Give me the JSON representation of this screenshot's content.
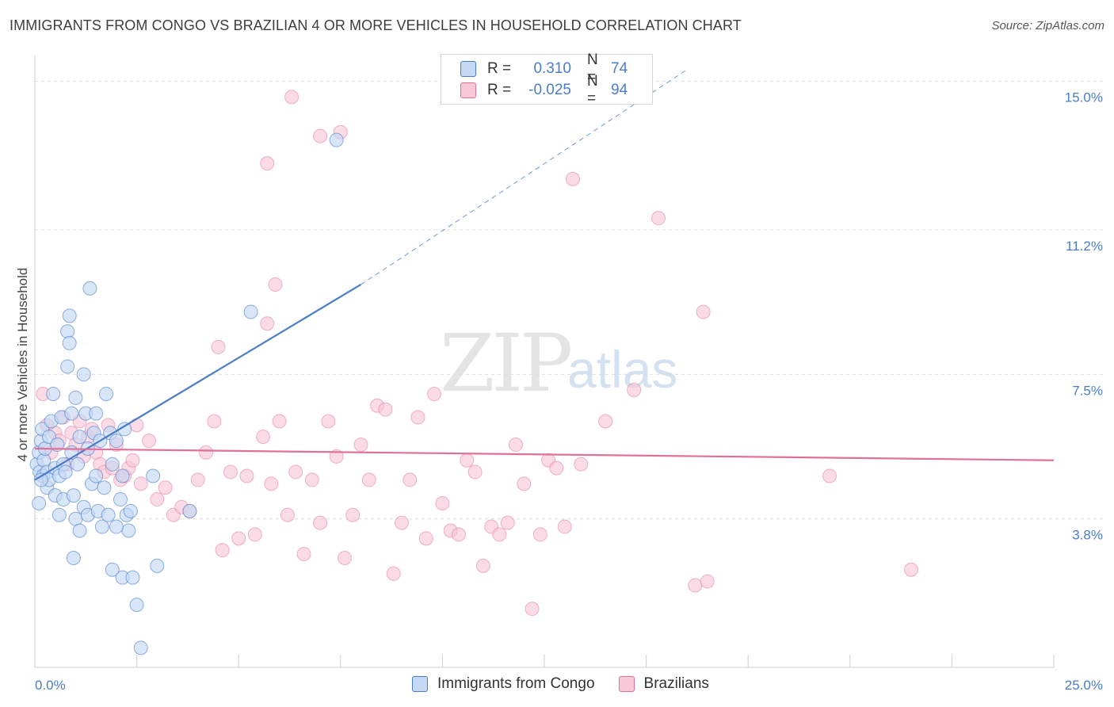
{
  "title": "IMMIGRANTS FROM CONGO VS BRAZILIAN 4 OR MORE VEHICLES IN HOUSEHOLD CORRELATION CHART",
  "source": "Source: ZipAtlas.com",
  "watermark": {
    "zip": "ZIP",
    "atlas": "atlas"
  },
  "colors": {
    "blue": "#4a7dc9",
    "blue_fill": "#c5d9f5",
    "pink": "#e07099",
    "pink_fill": "#f8c8d8"
  },
  "legend": {
    "rows": [
      {
        "r_label": "R =",
        "r_value": "0.310",
        "n_label": "N =",
        "n_value": "74"
      },
      {
        "r_label": "R =",
        "r_value": "-0.025",
        "n_label": "N =",
        "n_value": "94"
      }
    ]
  },
  "bottom_legend": [
    "Immigrants from Congo",
    "Brazilians"
  ],
  "chart_data": {
    "type": "scatter",
    "title": "IMMIGRANTS FROM CONGO VS BRAZILIAN 4 OR MORE VEHICLES IN HOUSEHOLD CORRELATION CHART",
    "xlabel": "",
    "ylabel": "4 or more Vehicles in Household",
    "xlim": [
      0,
      25
    ],
    "ylim": [
      0,
      15.5
    ],
    "x_tick_labels": [
      "0.0%",
      "25.0%"
    ],
    "y_ticks": [
      3.8,
      7.5,
      11.2,
      15.0
    ],
    "y_tick_labels": [
      "3.8%",
      "7.5%",
      "11.2%",
      "15.0%"
    ],
    "grid": true,
    "series": [
      {
        "name": "Immigrants from Congo",
        "r": 0.31,
        "n": 74,
        "trend": {
          "x": [
            0,
            8
          ],
          "y": [
            4.8,
            9.8
          ],
          "dashed_to": [
            16,
            15.3
          ]
        },
        "points": [
          [
            0.05,
            5.2
          ],
          [
            0.1,
            5.5
          ],
          [
            0.12,
            5.0
          ],
          [
            0.15,
            5.8
          ],
          [
            0.18,
            6.1
          ],
          [
            0.2,
            4.9
          ],
          [
            0.22,
            5.3
          ],
          [
            0.25,
            5.6
          ],
          [
            0.3,
            4.6
          ],
          [
            0.3,
            5.0
          ],
          [
            0.35,
            4.8
          ],
          [
            0.35,
            5.9
          ],
          [
            0.4,
            6.3
          ],
          [
            0.45,
            7.0
          ],
          [
            0.5,
            5.1
          ],
          [
            0.5,
            4.4
          ],
          [
            0.55,
            5.7
          ],
          [
            0.6,
            3.9
          ],
          [
            0.6,
            4.9
          ],
          [
            0.65,
            6.4
          ],
          [
            0.7,
            5.2
          ],
          [
            0.7,
            4.3
          ],
          [
            0.75,
            5.0
          ],
          [
            0.8,
            7.7
          ],
          [
            0.8,
            8.6
          ],
          [
            0.85,
            8.3
          ],
          [
            0.85,
            9.0
          ],
          [
            0.9,
            6.5
          ],
          [
            0.9,
            5.5
          ],
          [
            0.95,
            4.4
          ],
          [
            1.0,
            6.9
          ],
          [
            1.0,
            3.8
          ],
          [
            1.05,
            5.2
          ],
          [
            1.1,
            5.9
          ],
          [
            1.1,
            3.5
          ],
          [
            1.2,
            7.5
          ],
          [
            1.2,
            4.1
          ],
          [
            1.25,
            6.5
          ],
          [
            1.3,
            3.9
          ],
          [
            1.3,
            5.6
          ],
          [
            1.35,
            9.7
          ],
          [
            1.4,
            4.7
          ],
          [
            1.45,
            6.0
          ],
          [
            1.5,
            6.5
          ],
          [
            1.5,
            4.9
          ],
          [
            1.55,
            4.0
          ],
          [
            1.6,
            5.8
          ],
          [
            1.65,
            3.6
          ],
          [
            1.7,
            4.6
          ],
          [
            1.75,
            7.0
          ],
          [
            1.8,
            3.9
          ],
          [
            1.85,
            6.0
          ],
          [
            1.9,
            5.2
          ],
          [
            2.0,
            5.8
          ],
          [
            2.1,
            4.3
          ],
          [
            2.2,
            6.1
          ],
          [
            2.25,
            3.9
          ],
          [
            2.3,
            3.5
          ],
          [
            0.95,
            2.8
          ],
          [
            1.9,
            2.5
          ],
          [
            2.0,
            3.6
          ],
          [
            2.15,
            2.3
          ],
          [
            2.4,
            2.3
          ],
          [
            2.5,
            1.6
          ],
          [
            2.6,
            0.5
          ],
          [
            2.35,
            4.0
          ],
          [
            2.15,
            4.9
          ],
          [
            2.9,
            4.9
          ],
          [
            3.0,
            2.6
          ],
          [
            3.8,
            4.0
          ],
          [
            5.3,
            9.1
          ],
          [
            7.4,
            13.5
          ],
          [
            0.1,
            4.2
          ],
          [
            0.15,
            4.8
          ]
        ]
      },
      {
        "name": "Brazilians",
        "r": -0.025,
        "n": 94,
        "trend": {
          "x": [
            0,
            25
          ],
          "y": [
            5.6,
            5.3
          ]
        },
        "points": [
          [
            0.2,
            7.0
          ],
          [
            0.3,
            6.2
          ],
          [
            0.4,
            5.5
          ],
          [
            0.5,
            6.0
          ],
          [
            0.6,
            5.8
          ],
          [
            0.7,
            6.4
          ],
          [
            0.8,
            5.2
          ],
          [
            0.9,
            6.0
          ],
          [
            1.0,
            5.7
          ],
          [
            1.1,
            6.3
          ],
          [
            1.2,
            5.4
          ],
          [
            1.3,
            5.9
          ],
          [
            1.4,
            6.1
          ],
          [
            1.5,
            5.5
          ],
          [
            1.6,
            5.2
          ],
          [
            1.7,
            5.0
          ],
          [
            1.8,
            6.2
          ],
          [
            1.9,
            5.1
          ],
          [
            2.0,
            5.7
          ],
          [
            2.1,
            4.8
          ],
          [
            2.2,
            4.9
          ],
          [
            2.3,
            5.1
          ],
          [
            2.4,
            5.3
          ],
          [
            2.5,
            6.2
          ],
          [
            2.6,
            4.7
          ],
          [
            2.8,
            5.8
          ],
          [
            3.0,
            4.3
          ],
          [
            3.2,
            4.6
          ],
          [
            3.4,
            3.9
          ],
          [
            3.6,
            4.1
          ],
          [
            3.8,
            4.0
          ],
          [
            4.0,
            4.8
          ],
          [
            4.2,
            5.5
          ],
          [
            4.4,
            6.3
          ],
          [
            4.6,
            3.0
          ],
          [
            4.8,
            5.0
          ],
          [
            5.0,
            3.3
          ],
          [
            5.2,
            4.9
          ],
          [
            5.4,
            3.4
          ],
          [
            5.6,
            5.9
          ],
          [
            5.8,
            4.7
          ],
          [
            6.0,
            6.3
          ],
          [
            6.2,
            3.9
          ],
          [
            6.4,
            5.0
          ],
          [
            6.6,
            2.9
          ],
          [
            6.8,
            4.8
          ],
          [
            7.0,
            3.7
          ],
          [
            7.2,
            6.3
          ],
          [
            7.4,
            5.4
          ],
          [
            7.6,
            2.8
          ],
          [
            7.8,
            3.9
          ],
          [
            8.0,
            5.7
          ],
          [
            8.2,
            4.8
          ],
          [
            8.4,
            6.7
          ],
          [
            8.6,
            6.6
          ],
          [
            8.8,
            2.4
          ],
          [
            9.0,
            3.7
          ],
          [
            9.2,
            4.8
          ],
          [
            9.4,
            6.4
          ],
          [
            9.6,
            3.3
          ],
          [
            9.8,
            7.0
          ],
          [
            10.0,
            4.2
          ],
          [
            10.2,
            3.5
          ],
          [
            10.4,
            3.4
          ],
          [
            10.6,
            5.3
          ],
          [
            10.8,
            5.0
          ],
          [
            11.0,
            2.6
          ],
          [
            11.2,
            3.6
          ],
          [
            11.4,
            3.4
          ],
          [
            11.6,
            3.7
          ],
          [
            11.8,
            5.7
          ],
          [
            12.0,
            4.7
          ],
          [
            12.2,
            1.5
          ],
          [
            12.4,
            3.4
          ],
          [
            12.6,
            5.3
          ],
          [
            12.8,
            5.1
          ],
          [
            13.0,
            3.6
          ],
          [
            13.2,
            12.5
          ],
          [
            13.4,
            5.2
          ],
          [
            14.0,
            6.3
          ],
          [
            14.7,
            7.1
          ],
          [
            15.3,
            11.5
          ],
          [
            16.2,
            2.1
          ],
          [
            16.4,
            9.1
          ],
          [
            16.5,
            2.2
          ],
          [
            19.5,
            4.9
          ],
          [
            21.5,
            2.5
          ],
          [
            6.3,
            14.6
          ],
          [
            7.0,
            13.6
          ],
          [
            7.5,
            13.7
          ],
          [
            5.7,
            12.9
          ],
          [
            4.5,
            8.2
          ],
          [
            5.9,
            9.8
          ],
          [
            5.7,
            8.8
          ]
        ]
      }
    ]
  }
}
